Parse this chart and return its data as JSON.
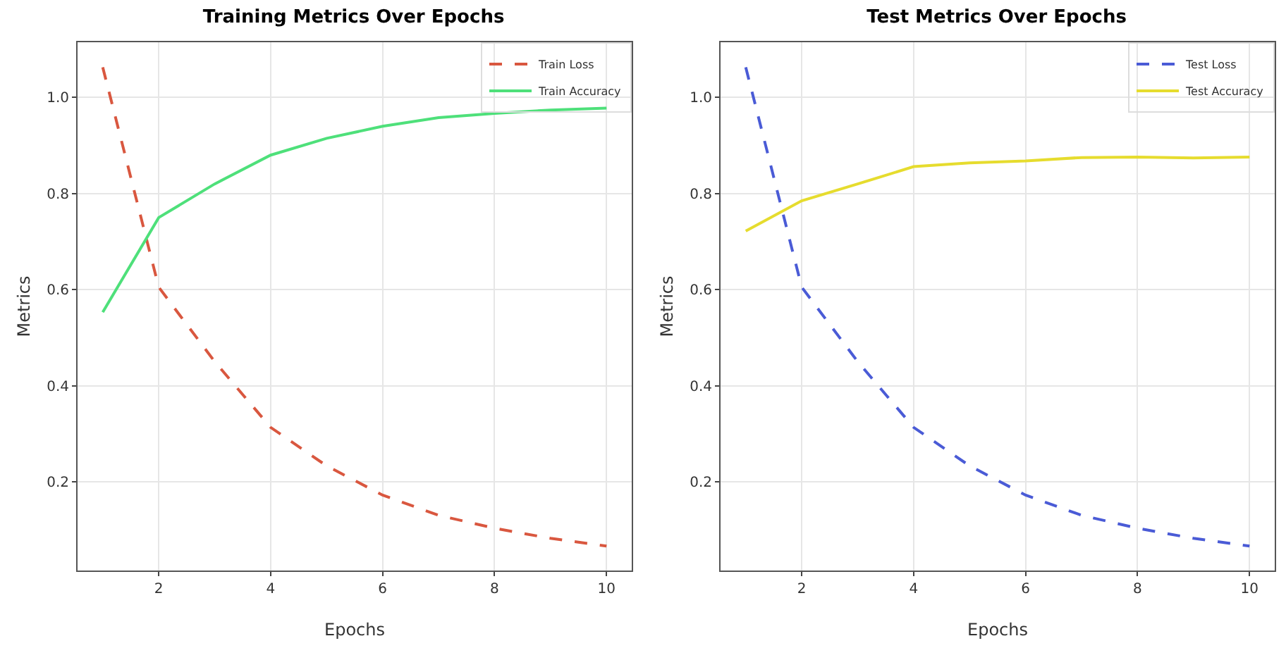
{
  "chart_data": [
    {
      "type": "line",
      "title": "Training Metrics Over Epochs",
      "xlabel": "Epochs",
      "ylabel": "Metrics",
      "x": [
        1,
        2,
        3,
        4,
        5,
        6,
        7,
        8,
        9,
        10
      ],
      "series": [
        {
          "name": "Train Loss",
          "color": "#d9573f",
          "line_style": "dashed",
          "values": [
            1.063,
            0.605,
            0.45,
            0.313,
            0.233,
            0.172,
            0.13,
            0.103,
            0.082,
            0.066
          ]
        },
        {
          "name": "Train Accuracy",
          "color": "#4ee07a",
          "line_style": "solid",
          "values": [
            0.553,
            0.75,
            0.82,
            0.88,
            0.915,
            0.94,
            0.958,
            0.967,
            0.974,
            0.978
          ]
        }
      ],
      "xlim": [
        0.55,
        10.45
      ],
      "ylim": [
        0.015,
        1.115
      ],
      "xticks": [
        2,
        4,
        6,
        8,
        10
      ],
      "yticks": [
        {
          "value": 0.2,
          "label": "0.2"
        },
        {
          "value": 0.4,
          "label": "0.4"
        },
        {
          "value": 0.6,
          "label": "0.6"
        },
        {
          "value": 0.8,
          "label": "0.8"
        },
        {
          "value": 1.0,
          "label": "1.0"
        }
      ],
      "grid": true,
      "legend": "top right",
      "marker": "none"
    },
    {
      "type": "line",
      "title": "Test Metrics Over Epochs",
      "xlabel": "Epochs",
      "ylabel": "Metrics",
      "x": [
        1,
        2,
        3,
        4,
        5,
        6,
        7,
        8,
        9,
        10
      ],
      "series": [
        {
          "name": "Test Loss",
          "color": "#4a5bd6",
          "line_style": "dashed",
          "values": [
            1.063,
            0.605,
            0.45,
            0.313,
            0.233,
            0.172,
            0.13,
            0.103,
            0.082,
            0.066
          ]
        },
        {
          "name": "Test Accuracy",
          "color": "#e6dc2e",
          "line_style": "solid",
          "values": [
            0.722,
            0.785,
            0.82,
            0.856,
            0.864,
            0.868,
            0.875,
            0.876,
            0.874,
            0.876
          ]
        }
      ],
      "xlim": [
        0.55,
        10.45
      ],
      "ylim": [
        0.015,
        1.115
      ],
      "xticks": [
        2,
        4,
        6,
        8,
        10
      ],
      "yticks": [
        {
          "value": 0.2,
          "label": "0.2"
        },
        {
          "value": 0.4,
          "label": "0.4"
        },
        {
          "value": 0.6,
          "label": "0.6"
        },
        {
          "value": 0.8,
          "label": "0.8"
        },
        {
          "value": 1.0,
          "label": "1.0"
        }
      ],
      "grid": true,
      "legend": "top right",
      "marker": "none"
    }
  ]
}
